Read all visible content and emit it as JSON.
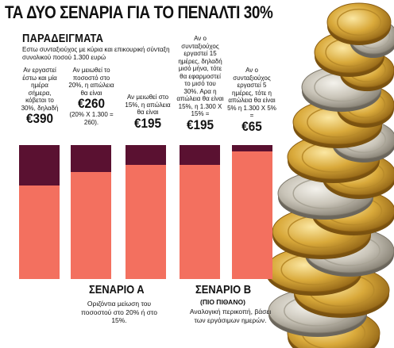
{
  "title": "ΤΑ ΔΥΟ ΣΕΝΑΡΙΑ ΓΙΑ ΤΟ ΠΕΝΑΛΤΙ 30%",
  "section_title": "ΠΑΡΑΔΕΙΓΜΑΤΑ",
  "intro": "Εστω συνταξιούχος με κύρια και επικουρική σύνταξη συνολικού ποσού 1.300 ευρώ",
  "colors": {
    "lost": "#5a1131",
    "kept": "#f3705f",
    "coin_gold": "#d9a93a",
    "coin_silver": "#c9c4b8"
  },
  "chart_data": {
    "type": "bar",
    "title": "ΤΑ ΔΥΟ ΣΕΝΑΡΙΑ ΓΙΑ ΤΟ ΠΕΝΑΛΤΙ 30%",
    "xlabel": "",
    "ylabel": "",
    "ylim": [
      0,
      100
    ],
    "series_semantics": "dark top segment = penalty share (%), coral = remaining share",
    "bars": [
      {
        "lost_pct": 30,
        "amount": "€390",
        "group": "Α",
        "text": "Αν εργαστεί έστω και μία ημέρα σήμερα, κόβεται το 30%, δηλαδή",
        "note": ""
      },
      {
        "lost_pct": 20,
        "amount": "€260",
        "group": "Α",
        "text": "Αν μειωθεί το ποσοστό στο 20%, η απώλεια θα είναι",
        "note": "(20% Χ 1.300 = 260)."
      },
      {
        "lost_pct": 15,
        "amount": "€195",
        "group": "Α",
        "text": "Αν μειωθεί στο 15%, η απώλεια θα είναι",
        "note": ""
      },
      {
        "lost_pct": 15,
        "amount": "€195",
        "group": "Β",
        "text": "Αν ο συνταξιούχος εργαστεί 15 ημέρες, δηλαδή μισό μήνα, τότε θα εφαρμοστεί το μισό του 30%. Αρα η απώλεια θα είναι 15%, η 1.300 Χ 15% =",
        "note": ""
      },
      {
        "lost_pct": 5,
        "amount": "€65",
        "group": "Β",
        "text": "Αν ο συνταξιούχος εργαστεί 5 ημέρες, τότε η απώλεια θα είναι 5% η 1.300 Χ 5% =",
        "note": ""
      }
    ]
  },
  "scenario_a": {
    "title": "ΣΕΝΑΡΙΟ Α",
    "desc": "Οριζόντια μείωση του ποσοστού στο 20% ή στο 15%."
  },
  "scenario_b": {
    "title": "ΣΕΝΑΡΙΟ Β",
    "sub": "(ΠΙΟ ΠΙΘΑΝΟ)",
    "desc": "Αναλογική περικοπή, βάσει των εργάσιμων ημερών."
  }
}
